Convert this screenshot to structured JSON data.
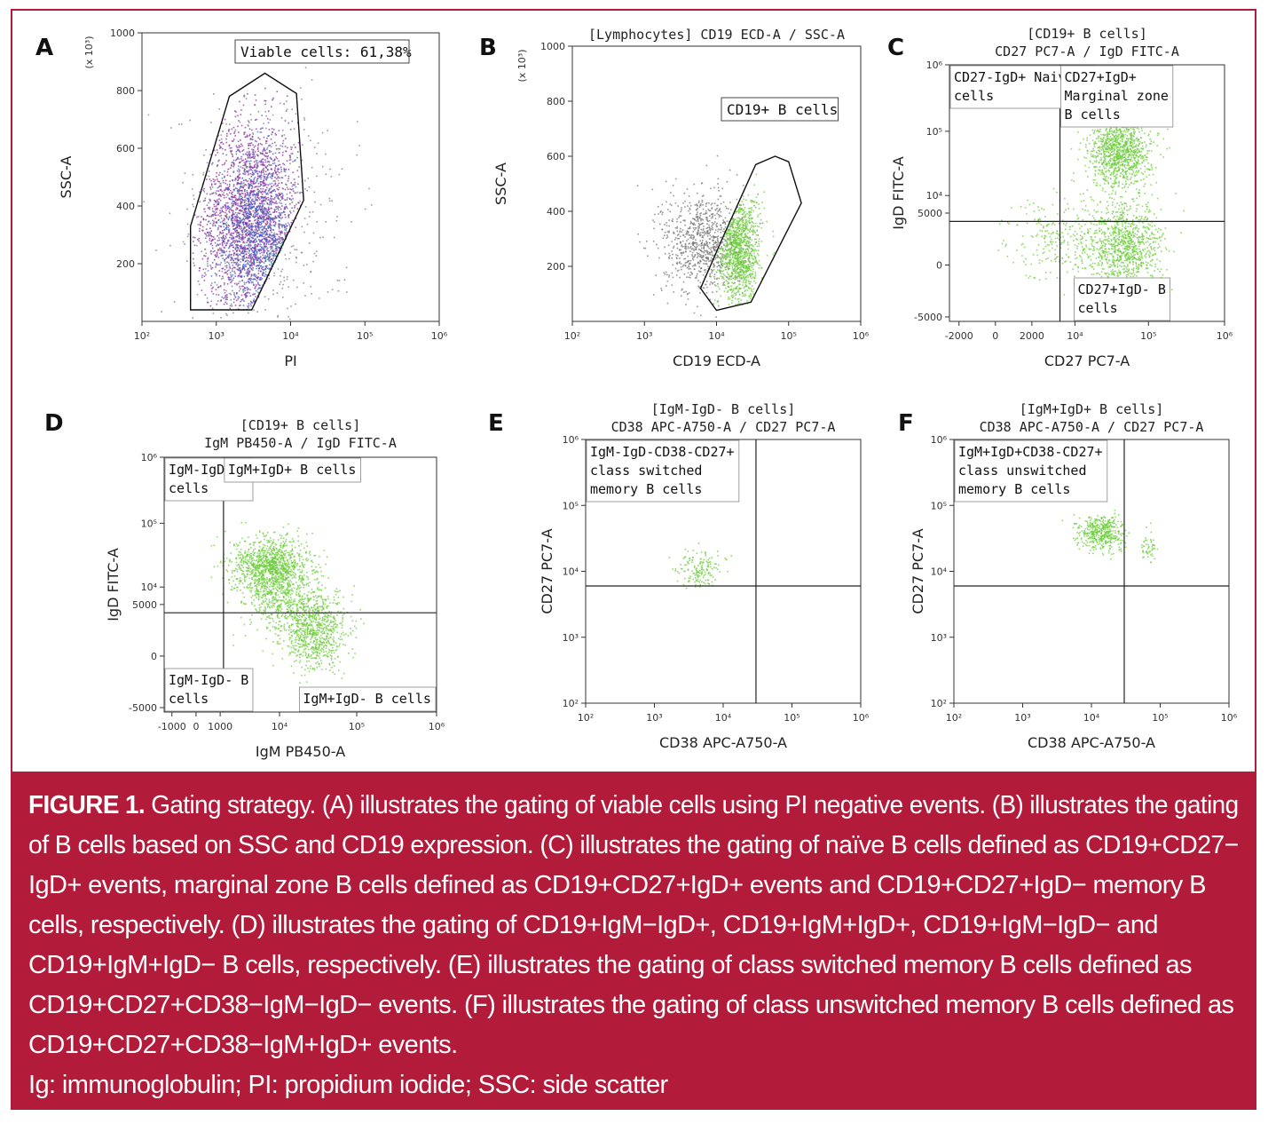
{
  "figure": {
    "accent_color": "#b31b3a",
    "caption_label": "FIGURE 1.",
    "caption_lines": [
      " Gating strategy. (A) illustrates the gating of viable cells using PI negative events. (B) illustrates the gating",
      "of B cells based on SSC and CD19 expression. (C) illustrates the gating of naïve B cells defined as CD19+CD27−",
      "IgD+ events, marginal zone B cells defined as CD19+CD27+IgD+ events and CD19+CD27+IgD− memory B",
      "cells, respectively. (D) illustrates the gating of CD19+IgM−IgD+, CD19+IgM+IgD+, CD19+IgM−IgD− and",
      "CD19+IgM+IgD− B cells, respectively. (E) illustrates the gating of class switched memory B cells defined as",
      "CD19+CD27+CD38−IgM−IgD− events. (F) illustrates the gating of class unswitched memory B cells defined as",
      "CD19+CD27+CD38−IgM+IgD+ events."
    ],
    "abbreviations": "Ig: immunoglobulin; PI: propidium iodide; SSC: side scatter"
  },
  "chart_data": [
    {
      "panel": "A",
      "type": "scatter",
      "title_lines": [],
      "xlabel": "PI",
      "ylabel": "SSC-A",
      "y_multiplier": "(x 10³)",
      "x_scale": "log",
      "x_range": [
        100,
        1000000
      ],
      "x_ticks": [
        {
          "v": 100,
          "label": "10²"
        },
        {
          "v": 1000,
          "label": "10³"
        },
        {
          "v": 10000,
          "label": "10⁴"
        },
        {
          "v": 100000,
          "label": "10⁵"
        },
        {
          "v": 1000000,
          "label": "10⁶"
        }
      ],
      "y_scale": "linear",
      "y_range": [
        0,
        1000
      ],
      "y_ticks": [
        {
          "v": 200,
          "label": "200"
        },
        {
          "v": 400,
          "label": "400"
        },
        {
          "v": 600,
          "label": "600"
        },
        {
          "v": 800,
          "label": "800"
        },
        {
          "v": 1000,
          "label": "1000"
        }
      ],
      "gate_polygon": [
        [
          450,
          40
        ],
        [
          3000,
          40
        ],
        [
          15000,
          420
        ],
        [
          12000,
          790
        ],
        [
          4500,
          860
        ],
        [
          1500,
          780
        ],
        [
          450,
          330
        ]
      ],
      "gate_label": "Viable cells: 61,38%",
      "gate_label_box": true,
      "quadrant": null,
      "quadrant_labels": [],
      "populations": [
        {
          "color": "#8a2a9a",
          "n": 2200,
          "cx": 3.45,
          "cy": 360,
          "sx": 0.33,
          "sy": 170,
          "clip": "gate"
        },
        {
          "color": "#3a6ad0",
          "n": 1000,
          "cx": 3.5,
          "cy": 300,
          "sx": 0.28,
          "sy": 140,
          "clip": "gate"
        },
        {
          "color": "#2a9ab0",
          "n": 600,
          "cx": 3.95,
          "cy": 160,
          "sx": 0.12,
          "sy": 60,
          "clip": "gate"
        },
        {
          "color": "#40c080",
          "n": 250,
          "cx": 3.98,
          "cy": 130,
          "sx": 0.09,
          "sy": 40,
          "clip": "gate"
        },
        {
          "color": "#7a7a8a",
          "n": 500,
          "cx": 3.6,
          "cy": 350,
          "sx": 0.6,
          "sy": 230,
          "clip": "none"
        }
      ]
    },
    {
      "panel": "B",
      "type": "scatter",
      "title_lines": [
        "[Lymphocytes] CD19 ECD-A / SSC-A"
      ],
      "xlabel": "CD19 ECD-A",
      "ylabel": "SSC-A",
      "y_multiplier": "(x 10³)",
      "x_scale": "log",
      "x_range": [
        100,
        1000000
      ],
      "x_ticks": [
        {
          "v": 100,
          "label": "10²"
        },
        {
          "v": 1000,
          "label": "10³"
        },
        {
          "v": 10000,
          "label": "10⁴"
        },
        {
          "v": 100000,
          "label": "10⁵"
        },
        {
          "v": 1000000,
          "label": "10⁶"
        }
      ],
      "y_scale": "linear",
      "y_range": [
        0,
        1000
      ],
      "y_ticks": [
        {
          "v": 200,
          "label": "200"
        },
        {
          "v": 400,
          "label": "400"
        },
        {
          "v": 600,
          "label": "600"
        },
        {
          "v": 800,
          "label": "800"
        },
        {
          "v": 1000,
          "label": "1000"
        }
      ],
      "gate_polygon": [
        [
          10000,
          40
        ],
        [
          30000,
          70
        ],
        [
          150000,
          430
        ],
        [
          100000,
          580
        ],
        [
          65000,
          600
        ],
        [
          35000,
          570
        ],
        [
          12000,
          300
        ],
        [
          6000,
          120
        ]
      ],
      "gate_label": "CD19+ B cells",
      "gate_label_box": true,
      "quadrant": null,
      "quadrant_labels": [],
      "populations": [
        {
          "color": "#777777",
          "n": 900,
          "cx": 3.8,
          "cy": 290,
          "sx": 0.28,
          "sy": 95,
          "clip": "none"
        },
        {
          "color": "#6ccc3a",
          "n": 1200,
          "cx": 4.3,
          "cy": 260,
          "sx": 0.15,
          "sy": 100,
          "clip": "gate"
        }
      ]
    },
    {
      "panel": "C",
      "type": "scatter",
      "title_lines": [
        "[CD19+ B cells]",
        "CD27 PC7-A / IgD FITC-A"
      ],
      "xlabel": "CD27 PC7-A",
      "ylabel": "IgD FITC-A",
      "y_multiplier": "",
      "x_scale": "logicle",
      "x_range": [
        -3000,
        1000000
      ],
      "x_ticks": [
        {
          "v": -2000,
          "label": "-2000"
        },
        {
          "v": 0,
          "label": "0"
        },
        {
          "v": 2000,
          "label": "2000"
        },
        {
          "v": 10000,
          "label": "10⁴"
        },
        {
          "v": 100000,
          "label": "10⁵"
        },
        {
          "v": 1000000,
          "label": "10⁶"
        }
      ],
      "y_scale": "logicle",
      "y_range": [
        -6000,
        1000000
      ],
      "y_ticks": [
        {
          "v": -5000,
          "label": "-5000"
        },
        {
          "v": 0,
          "label": "0"
        },
        {
          "v": 5000,
          "label": "5000"
        },
        {
          "v": 10000,
          "label": "10⁴"
        },
        {
          "v": 100000,
          "label": "10⁵"
        },
        {
          "v": 1000000,
          "label": "10⁶"
        }
      ],
      "gate_polygon": null,
      "gate_label": "",
      "gate_label_box": false,
      "quadrant": {
        "x": 6000,
        "y": 3500
      },
      "quadrant_labels": [
        {
          "corner": "tl",
          "lines": [
            "CD27-IgD+ Naive B",
            "cells"
          ]
        },
        {
          "corner": "tr",
          "lines": [
            "CD27+IgD+",
            "Marginal zone",
            "B cells"
          ]
        },
        {
          "corner": "br",
          "lines": [
            "CD27+IgD- B",
            "cells"
          ]
        }
      ],
      "populations": [
        {
          "color": "#6ccc3a",
          "n": 1100,
          "cx": 0.62,
          "cy": 0.67,
          "sx": 0.055,
          "sy": 0.075,
          "clip": "none",
          "space": "frac"
        },
        {
          "color": "#6ccc3a",
          "n": 900,
          "cx": 0.64,
          "cy": 0.28,
          "sx": 0.065,
          "sy": 0.09,
          "clip": "none",
          "space": "frac"
        },
        {
          "color": "#6ccc3a",
          "n": 350,
          "cx": 0.45,
          "cy": 0.33,
          "sx": 0.12,
          "sy": 0.08,
          "clip": "none",
          "space": "frac"
        }
      ]
    },
    {
      "panel": "D",
      "type": "scatter",
      "title_lines": [
        "[CD19+ B cells]",
        "IgM PB450-A / IgD FITC-A"
      ],
      "xlabel": "IgM PB450-A",
      "ylabel": "IgD FITC-A",
      "y_multiplier": "",
      "x_scale": "logicle",
      "x_range": [
        -1500,
        1000000
      ],
      "x_ticks": [
        {
          "v": -1000,
          "label": "-1000"
        },
        {
          "v": 0,
          "label": "0"
        },
        {
          "v": 1000,
          "label": "1000"
        },
        {
          "v": 10000,
          "label": "10⁴"
        },
        {
          "v": 100000,
          "label": "10⁵"
        },
        {
          "v": 1000000,
          "label": "10⁶"
        }
      ],
      "y_scale": "logicle",
      "y_range": [
        -6000,
        1000000
      ],
      "y_ticks": [
        {
          "v": -5000,
          "label": "-5000"
        },
        {
          "v": 0,
          "label": "0"
        },
        {
          "v": 5000,
          "label": "5000"
        },
        {
          "v": 10000,
          "label": "10⁴"
        },
        {
          "v": 100000,
          "label": "10⁵"
        },
        {
          "v": 1000000,
          "label": "10⁶"
        }
      ],
      "gate_polygon": null,
      "gate_label": "",
      "gate_label_box": false,
      "quadrant": {
        "x": 1200,
        "y": 3500
      },
      "quadrant_labels": [
        {
          "corner": "tl",
          "lines": [
            "IgM-IgD+ B",
            "cells"
          ]
        },
        {
          "corner": "tr",
          "lines": [
            "IgM+IgD+ B cells"
          ]
        },
        {
          "corner": "bl",
          "lines": [
            "IgM-IgD- B",
            "cells"
          ]
        },
        {
          "corner": "br",
          "lines": [
            "IgM+IgD- B cells"
          ]
        }
      ],
      "populations": [
        {
          "color": "#6ccc3a",
          "n": 1200,
          "cx": 0.39,
          "cy": 0.57,
          "sx": 0.07,
          "sy": 0.06,
          "clip": "none",
          "space": "frac"
        },
        {
          "color": "#6ccc3a",
          "n": 800,
          "cx": 0.55,
          "cy": 0.32,
          "sx": 0.06,
          "sy": 0.075,
          "clip": "none",
          "space": "frac"
        },
        {
          "color": "#6ccc3a",
          "n": 350,
          "cx": 0.43,
          "cy": 0.43,
          "sx": 0.07,
          "sy": 0.06,
          "clip": "none",
          "space": "frac"
        }
      ]
    },
    {
      "panel": "E",
      "type": "scatter",
      "title_lines": [
        "[IgM-IgD- B cells]",
        "CD38 APC-A750-A / CD27 PC7-A"
      ],
      "xlabel": "CD38 APC-A750-A",
      "ylabel": "CD27 PC7-A",
      "y_multiplier": "",
      "x_scale": "log",
      "x_range": [
        100,
        1000000
      ],
      "x_ticks": [
        {
          "v": 100,
          "label": "10²"
        },
        {
          "v": 1000,
          "label": "10³"
        },
        {
          "v": 10000,
          "label": "10⁴"
        },
        {
          "v": 100000,
          "label": "10⁵"
        },
        {
          "v": 1000000,
          "label": "10⁶"
        }
      ],
      "y_scale": "log",
      "y_range": [
        100,
        1000000
      ],
      "y_ticks": [
        {
          "v": 100,
          "label": "10²"
        },
        {
          "v": 1000,
          "label": "10³"
        },
        {
          "v": 10000,
          "label": "10⁴"
        },
        {
          "v": 100000,
          "label": "10⁵"
        },
        {
          "v": 1000000,
          "label": "10⁶"
        }
      ],
      "gate_polygon": null,
      "gate_label": "",
      "gate_label_box": false,
      "quadrant": {
        "x": 30000,
        "y": 6000
      },
      "quadrant_labels": [
        {
          "corner": "tl",
          "lines": [
            "IgM-IgD-CD38-CD27+",
            "class switched",
            "memory B cells"
          ]
        }
      ],
      "populations": [
        {
          "color": "#6ccc3a",
          "n": 160,
          "cx": 3.65,
          "cy": 4.05,
          "sx": 0.17,
          "sy": 0.14,
          "clip": "none"
        }
      ]
    },
    {
      "panel": "F",
      "type": "scatter",
      "title_lines": [
        "[IgM+IgD+ B cells]",
        "CD38 APC-A750-A / CD27 PC7-A"
      ],
      "xlabel": "CD38 APC-A750-A",
      "ylabel": "CD27 PC7-A",
      "y_multiplier": "",
      "x_scale": "log",
      "x_range": [
        100,
        1000000
      ],
      "x_ticks": [
        {
          "v": 100,
          "label": "10²"
        },
        {
          "v": 1000,
          "label": "10³"
        },
        {
          "v": 10000,
          "label": "10⁴"
        },
        {
          "v": 100000,
          "label": "10⁵"
        },
        {
          "v": 1000000,
          "label": "10⁶"
        }
      ],
      "y_scale": "log",
      "y_range": [
        100,
        1000000
      ],
      "y_ticks": [
        {
          "v": 100,
          "label": "10²"
        },
        {
          "v": 1000,
          "label": "10³"
        },
        {
          "v": 10000,
          "label": "10⁴"
        },
        {
          "v": 100000,
          "label": "10⁵"
        },
        {
          "v": 1000000,
          "label": "10⁶"
        }
      ],
      "gate_polygon": null,
      "gate_label": "",
      "gate_label_box": false,
      "quadrant": {
        "x": 30000,
        "y": 6000
      },
      "quadrant_labels": [
        {
          "corner": "tl",
          "lines": [
            "IgM+IgD+CD38-CD27+",
            "class unswitched",
            "memory B cells"
          ]
        }
      ],
      "populations": [
        {
          "color": "#6ccc3a",
          "n": 450,
          "cx": 4.15,
          "cy": 4.6,
          "sx": 0.16,
          "sy": 0.13,
          "clip": "none"
        },
        {
          "color": "#6ccc3a",
          "n": 50,
          "cx": 4.8,
          "cy": 4.35,
          "sx": 0.08,
          "sy": 0.12,
          "clip": "none"
        }
      ]
    }
  ]
}
